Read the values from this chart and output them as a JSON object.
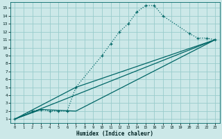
{
  "bg_color": "#cce8e8",
  "grid_color": "#99cccc",
  "line_color": "#006666",
  "xlabel": "Humidex (Indice chaleur)",
  "xlim": [
    -0.5,
    23.5
  ],
  "ylim": [
    0.5,
    15.7
  ],
  "xticks": [
    0,
    1,
    2,
    3,
    4,
    5,
    6,
    7,
    8,
    9,
    10,
    11,
    12,
    13,
    14,
    15,
    16,
    17,
    18,
    19,
    20,
    21,
    22,
    23
  ],
  "yticks": [
    1,
    2,
    3,
    4,
    5,
    6,
    7,
    8,
    9,
    10,
    11,
    12,
    13,
    14,
    15
  ],
  "main_x": [
    0,
    2,
    3,
    4,
    5,
    6,
    7,
    10,
    11,
    12,
    13,
    14,
    15,
    16,
    17,
    20,
    21,
    22,
    23
  ],
  "main_y": [
    1,
    2,
    2.2,
    2,
    2,
    2,
    5,
    9,
    10.5,
    12,
    13,
    14.5,
    15.3,
    15.3,
    14,
    11.8,
    11.2,
    11.2,
    11
  ],
  "line1_x": [
    0,
    23
  ],
  "line1_y": [
    1,
    11
  ],
  "line2_x": [
    0,
    7,
    23
  ],
  "line2_y": [
    1,
    5,
    11
  ],
  "line3_x": [
    0,
    3,
    7,
    23
  ],
  "line3_y": [
    1,
    2.2,
    2,
    11
  ]
}
